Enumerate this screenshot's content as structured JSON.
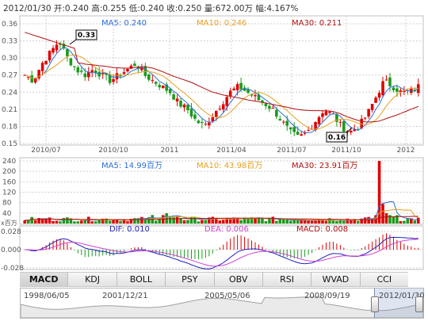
{
  "info": {
    "date": "2012/01/30",
    "open": "开:0.240",
    "high": "高:0.255",
    "low": "低:0.240",
    "close": "收:0.250",
    "volume": "量:672.00万",
    "change": "幅:4.167%"
  },
  "colors": {
    "up": "#e00000",
    "down": "#1a9a1a",
    "ma5": "#2b6fd6",
    "ma10": "#e6a020",
    "ma30": "#b01010",
    "grid": "#d0d0d0",
    "dif": "#2020c0",
    "dea": "#d040d0"
  },
  "price_panel": {
    "ma5_label": "MA5: 0.240",
    "ma10_label": "MA10: 0.246",
    "ma30_label": "MA30: 0.211",
    "y_ticks": [
      "0.36",
      "0.33",
      "0.30",
      "0.27",
      "0.24",
      "0.21",
      "0.18",
      "0.15"
    ],
    "x_ticks": [
      "2010/07",
      "2010/10",
      "2011",
      "2011/04",
      "2011/07",
      "2011/10",
      "2012"
    ],
    "high_marker": "0.33",
    "low_marker": "0.16"
  },
  "volume_panel": {
    "ma5_label": "MA5: 14.99百万",
    "ma10_label": "MA10: 43.98百万",
    "ma30_label": "MA30: 23.91百万",
    "y_ticks": [
      "240",
      "200",
      "160",
      "120",
      "80",
      "40"
    ],
    "unit": "x百万"
  },
  "macd_panel": {
    "dif_label": "DIF: 0.010",
    "dea_label": "DEA: 0.006",
    "macd_label": "MACD: 0.008",
    "y_ticks": [
      "0.028",
      "0.000",
      "-0.028"
    ]
  },
  "tabs": [
    "MACD",
    "KDJ",
    "BOLL",
    "PSY",
    "OBV",
    "RSI",
    "WVAD",
    "CCI"
  ],
  "active_tab": "MACD",
  "timeline": {
    "labels": [
      "1998/06/05",
      "2001/12/21",
      "2005/05/06",
      "2008/09/19",
      "2012/01/30"
    ]
  },
  "chart_data": {
    "type": "candlestick",
    "x_ticks": [
      "2010/07",
      "2010/10",
      "2011",
      "2011/04",
      "2011/07",
      "2011/10",
      "2012"
    ],
    "price_range": [
      0.15,
      0.36
    ],
    "price_path": [
      0.27,
      0.26,
      0.29,
      0.31,
      0.33,
      0.3,
      0.28,
      0.27,
      0.28,
      0.27,
      0.26,
      0.27,
      0.28,
      0.29,
      0.27,
      0.26,
      0.25,
      0.24,
      0.22,
      0.21,
      0.19,
      0.18,
      0.2,
      0.22,
      0.24,
      0.25,
      0.24,
      0.23,
      0.22,
      0.21,
      0.19,
      0.17,
      0.16,
      0.17,
      0.19,
      0.21,
      0.2,
      0.18,
      0.17,
      0.18,
      0.2,
      0.23,
      0.26,
      0.25,
      0.24,
      0.24,
      0.25
    ],
    "volume_range": [
      0,
      240
    ],
    "macd_range": [
      -0.028,
      0.028
    ],
    "annotations": [
      {
        "label": "0.33",
        "x_index": 4
      },
      {
        "label": "0.16",
        "x_index": 32
      }
    ]
  }
}
